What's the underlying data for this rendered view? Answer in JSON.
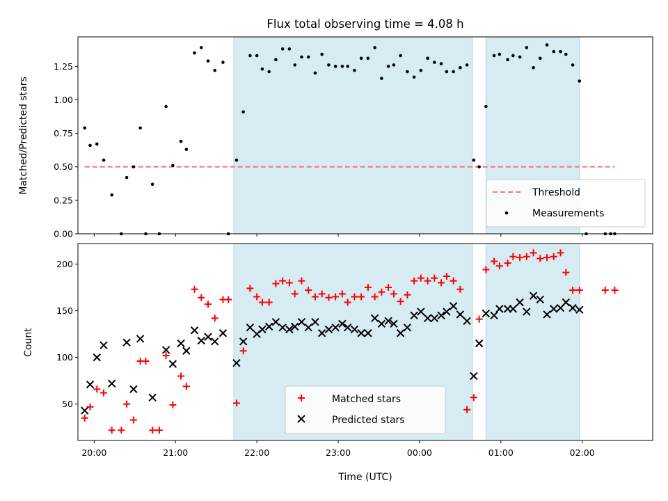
{
  "chart_data": [
    {
      "type": "scatter",
      "title": "Flux total observing time = 4.08 h",
      "xlabel": "",
      "ylabel": "Matched/Predicted stars",
      "x_is_time_utc_minutes_since_first_tick": false,
      "xlim": [
        "19:48",
        "02:52"
      ],
      "ylim": [
        0,
        1.47
      ],
      "yticks": [
        0.0,
        0.25,
        0.5,
        0.75,
        1.0,
        1.25
      ],
      "ytick_labels": [
        "0.00",
        "0.25",
        "0.50",
        "0.75",
        "1.00",
        "1.25"
      ],
      "legend_position": "lower right",
      "shaded_intervals": [
        [
          "21:43",
          "00:39"
        ],
        [
          "00:49",
          "01:58"
        ]
      ],
      "threshold": {
        "name": "Threshold",
        "value": 0.5,
        "x_range": [
          "19:53",
          "02:24"
        ],
        "color": "#ff7373",
        "style": "dashed"
      },
      "series": [
        {
          "name": "Measurements",
          "marker": "dot",
          "color": "#000000",
          "points": [
            [
              "19:53",
              0.79
            ],
            [
              "19:57",
              0.66
            ],
            [
              "20:02",
              0.67
            ],
            [
              "20:07",
              0.55
            ],
            [
              "20:13",
              0.29
            ],
            [
              "20:20",
              0.0
            ],
            [
              "20:24",
              0.42
            ],
            [
              "20:29",
              0.5
            ],
            [
              "20:34",
              0.79
            ],
            [
              "20:38",
              0.0
            ],
            [
              "20:43",
              0.37
            ],
            [
              "20:48",
              0.0
            ],
            [
              "20:53",
              0.95
            ],
            [
              "20:58",
              0.51
            ],
            [
              "21:04",
              0.69
            ],
            [
              "21:08",
              0.63
            ],
            [
              "21:14",
              1.35
            ],
            [
              "21:19",
              1.39
            ],
            [
              "21:24",
              1.29
            ],
            [
              "21:29",
              1.22
            ],
            [
              "21:35",
              1.28
            ],
            [
              "21:39",
              0.0
            ],
            [
              "21:45",
              0.55
            ],
            [
              "21:50",
              0.91
            ],
            [
              "21:55",
              1.33
            ],
            [
              "22:00",
              1.33
            ],
            [
              "22:04",
              1.23
            ],
            [
              "22:09",
              1.21
            ],
            [
              "22:14",
              1.3
            ],
            [
              "22:19",
              1.38
            ],
            [
              "22:24",
              1.38
            ],
            [
              "22:28",
              1.26
            ],
            [
              "22:33",
              1.32
            ],
            [
              "22:38",
              1.32
            ],
            [
              "22:43",
              1.2
            ],
            [
              "22:48",
              1.34
            ],
            [
              "22:53",
              1.26
            ],
            [
              "22:58",
              1.25
            ],
            [
              "23:03",
              1.25
            ],
            [
              "23:07",
              1.25
            ],
            [
              "23:12",
              1.22
            ],
            [
              "23:17",
              1.31
            ],
            [
              "23:22",
              1.31
            ],
            [
              "23:27",
              1.39
            ],
            [
              "23:32",
              1.16
            ],
            [
              "23:37",
              1.25
            ],
            [
              "23:41",
              1.26
            ],
            [
              "23:46",
              1.33
            ],
            [
              "23:51",
              1.21
            ],
            [
              "23:56",
              1.17
            ],
            [
              "00:01",
              1.22
            ],
            [
              "00:06",
              1.31
            ],
            [
              "00:11",
              1.28
            ],
            [
              "00:16",
              1.27
            ],
            [
              "00:20",
              1.21
            ],
            [
              "00:25",
              1.21
            ],
            [
              "00:30",
              1.24
            ],
            [
              "00:35",
              1.26
            ],
            [
              "00:40",
              0.55
            ],
            [
              "00:44",
              0.5
            ],
            [
              "00:49",
              0.95
            ],
            [
              "00:55",
              1.33
            ],
            [
              "00:59",
              1.34
            ],
            [
              "01:05",
              1.3
            ],
            [
              "01:09",
              1.33
            ],
            [
              "01:14",
              1.32
            ],
            [
              "01:19",
              1.39
            ],
            [
              "01:24",
              1.24
            ],
            [
              "01:29",
              1.31
            ],
            [
              "01:34",
              1.41
            ],
            [
              "01:39",
              1.36
            ],
            [
              "01:44",
              1.36
            ],
            [
              "01:48",
              1.34
            ],
            [
              "01:53",
              1.26
            ],
            [
              "01:58",
              1.14
            ],
            [
              "02:03",
              0.0
            ],
            [
              "02:17",
              0.0
            ],
            [
              "02:21",
              0.0
            ],
            [
              "02:24",
              0.0
            ]
          ]
        }
      ]
    },
    {
      "type": "scatter",
      "title": "",
      "xlabel": "Time (UTC)",
      "ylabel": "Count",
      "xlim": [
        "19:48",
        "02:52"
      ],
      "ylim": [
        11,
        222
      ],
      "yticks": [
        50,
        100,
        150,
        200
      ],
      "ytick_labels": [
        "50",
        "100",
        "150",
        "200"
      ],
      "xticks": [
        "20:00",
        "21:00",
        "22:00",
        "23:00",
        "00:00",
        "01:00",
        "02:00"
      ],
      "xtick_labels": [
        "20:00",
        "21:00",
        "22:00",
        "23:00",
        "00:00",
        "01:00",
        "02:00"
      ],
      "legend_position": "lower center",
      "shaded_intervals": [
        [
          "21:43",
          "00:39"
        ],
        [
          "00:49",
          "01:58"
        ]
      ],
      "series": [
        {
          "name": "Matched stars",
          "marker": "plus",
          "color": "#ff0000",
          "points": [
            [
              "19:53",
              35
            ],
            [
              "19:57",
              47
            ],
            [
              "20:02",
              66
            ],
            [
              "20:07",
              62
            ],
            [
              "20:13",
              22
            ],
            [
              "20:20",
              22
            ],
            [
              "20:24",
              50
            ],
            [
              "20:29",
              33
            ],
            [
              "20:34",
              96
            ],
            [
              "20:38",
              96
            ],
            [
              "20:43",
              22
            ],
            [
              "20:48",
              22
            ],
            [
              "20:53",
              102
            ],
            [
              "20:58",
              49
            ],
            [
              "21:04",
              80
            ],
            [
              "21:08",
              69
            ],
            [
              "21:14",
              173
            ],
            [
              "21:19",
              164
            ],
            [
              "21:24",
              157
            ],
            [
              "21:29",
              142
            ],
            [
              "21:35",
              162
            ],
            [
              "21:39",
              162
            ],
            [
              "21:45",
              51
            ],
            [
              "21:50",
              107
            ],
            [
              "21:55",
              174
            ],
            [
              "22:00",
              165
            ],
            [
              "22:04",
              159
            ],
            [
              "22:09",
              159
            ],
            [
              "22:14",
              179
            ],
            [
              "22:19",
              182
            ],
            [
              "22:24",
              180
            ],
            [
              "22:28",
              168
            ],
            [
              "22:33",
              182
            ],
            [
              "22:38",
              172
            ],
            [
              "22:43",
              165
            ],
            [
              "22:48",
              168
            ],
            [
              "22:53",
              164
            ],
            [
              "22:58",
              165
            ],
            [
              "23:03",
              168
            ],
            [
              "23:07",
              159
            ],
            [
              "23:12",
              165
            ],
            [
              "23:17",
              165
            ],
            [
              "23:22",
              175
            ],
            [
              "23:27",
              165
            ],
            [
              "23:32",
              170
            ],
            [
              "23:37",
              175
            ],
            [
              "23:41",
              168
            ],
            [
              "23:46",
              160
            ],
            [
              "23:51",
              167
            ],
            [
              "23:56",
              182
            ],
            [
              "00:01",
              185
            ],
            [
              "00:06",
              182
            ],
            [
              "00:11",
              185
            ],
            [
              "00:16",
              180
            ],
            [
              "00:20",
              187
            ],
            [
              "00:25",
              182
            ],
            [
              "00:30",
              173
            ],
            [
              "00:35",
              44
            ],
            [
              "00:40",
              57
            ],
            [
              "00:44",
              141
            ],
            [
              "00:49",
              194
            ],
            [
              "00:55",
              203
            ],
            [
              "00:59",
              198
            ],
            [
              "01:05",
              201
            ],
            [
              "01:09",
              208
            ],
            [
              "01:14",
              207
            ],
            [
              "01:19",
              208
            ],
            [
              "01:24",
              212
            ],
            [
              "01:29",
              206
            ],
            [
              "01:34",
              207
            ],
            [
              "01:39",
              208
            ],
            [
              "01:44",
              212
            ],
            [
              "01:48",
              191
            ],
            [
              "01:53",
              172
            ],
            [
              "01:58",
              172
            ],
            [
              "02:17",
              172
            ],
            [
              "02:24",
              172
            ]
          ]
        },
        {
          "name": "Predicted stars",
          "marker": "x",
          "color": "#000000",
          "points": [
            [
              "19:53",
              43
            ],
            [
              "19:57",
              71
            ],
            [
              "20:02",
              100
            ],
            [
              "20:07",
              113
            ],
            [
              "20:13",
              72
            ],
            [
              "20:24",
              116
            ],
            [
              "20:29",
              66
            ],
            [
              "20:34",
              120
            ],
            [
              "20:43",
              57
            ],
            [
              "20:53",
              108
            ],
            [
              "20:58",
              93
            ],
            [
              "21:04",
              115
            ],
            [
              "21:08",
              107
            ],
            [
              "21:14",
              129
            ],
            [
              "21:19",
              118
            ],
            [
              "21:24",
              122
            ],
            [
              "21:29",
              117
            ],
            [
              "21:35",
              126
            ],
            [
              "21:45",
              94
            ],
            [
              "21:50",
              117
            ],
            [
              "21:55",
              132
            ],
            [
              "22:00",
              125
            ],
            [
              "22:04",
              130
            ],
            [
              "22:09",
              133
            ],
            [
              "22:14",
              138
            ],
            [
              "22:19",
              132
            ],
            [
              "22:24",
              130
            ],
            [
              "22:28",
              133
            ],
            [
              "22:33",
              138
            ],
            [
              "22:38",
              132
            ],
            [
              "22:43",
              138
            ],
            [
              "22:48",
              126
            ],
            [
              "22:53",
              130
            ],
            [
              "22:58",
              132
            ],
            [
              "23:03",
              136
            ],
            [
              "23:07",
              132
            ],
            [
              "23:12",
              130
            ],
            [
              "23:17",
              126
            ],
            [
              "23:22",
              126
            ],
            [
              "23:27",
              142
            ],
            [
              "23:32",
              136
            ],
            [
              "23:37",
              139
            ],
            [
              "23:41",
              136
            ],
            [
              "23:46",
              126
            ],
            [
              "23:51",
              132
            ],
            [
              "23:56",
              145
            ],
            [
              "00:01",
              149
            ],
            [
              "00:06",
              142
            ],
            [
              "00:11",
              142
            ],
            [
              "00:16",
              145
            ],
            [
              "00:20",
              149
            ],
            [
              "00:25",
              155
            ],
            [
              "00:30",
              146
            ],
            [
              "00:35",
              139
            ],
            [
              "00:40",
              80
            ],
            [
              "00:44",
              115
            ],
            [
              "00:49",
              147
            ],
            [
              "00:55",
              145
            ],
            [
              "00:59",
              152
            ],
            [
              "01:05",
              152
            ],
            [
              "01:09",
              152
            ],
            [
              "01:14",
              159
            ],
            [
              "01:19",
              149
            ],
            [
              "01:24",
              166
            ],
            [
              "01:29",
              162
            ],
            [
              "01:34",
              146
            ],
            [
              "01:39",
              152
            ],
            [
              "01:44",
              153
            ],
            [
              "01:48",
              159
            ],
            [
              "01:53",
              153
            ],
            [
              "01:58",
              151
            ]
          ]
        }
      ]
    }
  ]
}
